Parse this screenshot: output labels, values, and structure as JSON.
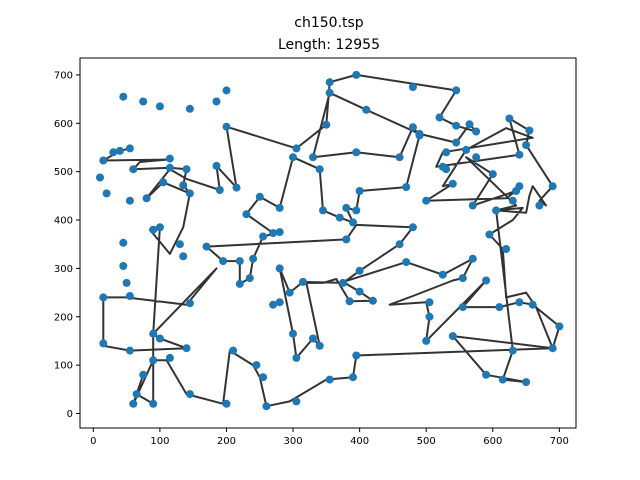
{
  "chart_data": {
    "type": "line",
    "title": "ch150.tsp",
    "subtitle": "Length: 12955",
    "xlabel": "",
    "ylabel": "",
    "xlim": [
      -20,
      725
    ],
    "ylim": [
      -30,
      735
    ],
    "x_ticks": [
      "0",
      "100",
      "200",
      "300",
      "400",
      "500",
      "600",
      "700"
    ],
    "y_ticks": [
      "0",
      "100",
      "200",
      "300",
      "400",
      "500",
      "600",
      "700"
    ],
    "grid": false,
    "colors": {
      "route": "#000000",
      "city": "#1f77b4"
    },
    "tour": [
      [
        30,
        540
      ],
      [
        55,
        548
      ],
      [
        40,
        543
      ],
      [
        15,
        523
      ],
      [
        110,
        525
      ],
      [
        70,
        520
      ],
      [
        60,
        505
      ],
      [
        115,
        508
      ],
      [
        140,
        505
      ],
      [
        135,
        472
      ],
      [
        145,
        455
      ],
      [
        105,
        478
      ],
      [
        80,
        445
      ],
      [
        115,
        505
      ],
      [
        140,
        485
      ],
      [
        190,
        462
      ],
      [
        185,
        512
      ],
      [
        215,
        467
      ],
      [
        200,
        593
      ],
      [
        305,
        548
      ],
      [
        350,
        597
      ],
      [
        355,
        685
      ],
      [
        395,
        700
      ],
      [
        545,
        668
      ],
      [
        520,
        612
      ],
      [
        545,
        595
      ],
      [
        575,
        583
      ],
      [
        565,
        598
      ],
      [
        545,
        560
      ],
      [
        490,
        578
      ],
      [
        410,
        628
      ],
      [
        355,
        663
      ],
      [
        330,
        530
      ],
      [
        395,
        540
      ],
      [
        460,
        530
      ],
      [
        480,
        592
      ],
      [
        490,
        575
      ],
      [
        470,
        468
      ],
      [
        400,
        460
      ],
      [
        395,
        420
      ],
      [
        380,
        425
      ],
      [
        380,
        425
      ],
      [
        390,
        395
      ],
      [
        370,
        405
      ],
      [
        345,
        420
      ],
      [
        340,
        505
      ],
      [
        300,
        530
      ],
      [
        280,
        425
      ],
      [
        250,
        448
      ],
      [
        230,
        412
      ],
      [
        270,
        373
      ],
      [
        280,
        375
      ],
      [
        255,
        366
      ],
      [
        240,
        320
      ],
      [
        235,
        280
      ],
      [
        220,
        268
      ],
      [
        220,
        315
      ],
      [
        195,
        315
      ],
      [
        170,
        345
      ],
      [
        380,
        360
      ],
      [
        395,
        390
      ],
      [
        480,
        385
      ],
      [
        460,
        350
      ],
      [
        400,
        295
      ],
      [
        375,
        270
      ],
      [
        315,
        272
      ],
      [
        295,
        250
      ],
      [
        280,
        300
      ],
      [
        300,
        165
      ],
      [
        305,
        115
      ],
      [
        330,
        155
      ],
      [
        340,
        140
      ],
      [
        320,
        270
      ],
      [
        345,
        270
      ],
      [
        365,
        278
      ],
      [
        385,
        232
      ],
      [
        420,
        233
      ],
      [
        400,
        252
      ],
      [
        375,
        272
      ],
      [
        470,
        313
      ],
      [
        525,
        287
      ],
      [
        570,
        320
      ],
      [
        555,
        280
      ],
      [
        540,
        275
      ],
      [
        480,
        243
      ],
      [
        445,
        225
      ],
      [
        500,
        230
      ],
      [
        505,
        200
      ],
      [
        500,
        150
      ],
      [
        590,
        275
      ],
      [
        555,
        220
      ],
      [
        610,
        220
      ],
      [
        640,
        230
      ],
      [
        660,
        225
      ],
      [
        700,
        180
      ],
      [
        690,
        135
      ],
      [
        665,
        220
      ],
      [
        650,
        250
      ],
      [
        620,
        240
      ],
      [
        615,
        340
      ],
      [
        595,
        370
      ],
      [
        630,
        400
      ],
      [
        645,
        425
      ],
      [
        605,
        420
      ],
      [
        650,
        415
      ],
      [
        655,
        450
      ],
      [
        660,
        470
      ],
      [
        680,
        430
      ],
      [
        670,
        440
      ],
      [
        690,
        470
      ],
      [
        650,
        555
      ],
      [
        655,
        585
      ],
      [
        625,
        610
      ],
      [
        640,
        535
      ],
      [
        515,
        510
      ],
      [
        525,
        540
      ],
      [
        660,
        570
      ],
      [
        620,
        590
      ],
      [
        560,
        545
      ],
      [
        525,
        470
      ],
      [
        540,
        475
      ],
      [
        500,
        440
      ],
      [
        620,
        445
      ],
      [
        635,
        460
      ],
      [
        570,
        430
      ],
      [
        600,
        495
      ],
      [
        560,
        530
      ],
      [
        635,
        430
      ],
      [
        605,
        420
      ],
      [
        630,
        130
      ],
      [
        615,
        70
      ],
      [
        650,
        65
      ],
      [
        590,
        80
      ],
      [
        540,
        160
      ],
      [
        690,
        135
      ],
      [
        395,
        120
      ],
      [
        390,
        75
      ],
      [
        350,
        70
      ],
      [
        295,
        25
      ],
      [
        260,
        15
      ],
      [
        250,
        75
      ],
      [
        240,
        100
      ],
      [
        205,
        130
      ],
      [
        195,
        20
      ],
      [
        140,
        40
      ],
      [
        110,
        110
      ],
      [
        90,
        110
      ],
      [
        60,
        20
      ],
      [
        75,
        80
      ],
      [
        65,
        40
      ],
      [
        90,
        20
      ],
      [
        90,
        165
      ],
      [
        100,
        155
      ],
      [
        140,
        135
      ],
      [
        55,
        130
      ],
      [
        15,
        140
      ],
      [
        15,
        240
      ],
      [
        50,
        240
      ],
      [
        140,
        225
      ],
      [
        185,
        300
      ],
      [
        90,
        165
      ],
      [
        100,
        385
      ],
      [
        85,
        380
      ],
      [
        115,
        330
      ],
      [
        135,
        385
      ],
      [
        145,
        455
      ]
    ],
    "cities": [
      [
        30,
        540
      ],
      [
        55,
        548
      ],
      [
        40,
        543
      ],
      [
        15,
        523
      ],
      [
        10,
        488
      ],
      [
        20,
        455
      ],
      [
        55,
        440
      ],
      [
        80,
        445
      ],
      [
        105,
        478
      ],
      [
        115,
        508
      ],
      [
        115,
        527
      ],
      [
        60,
        505
      ],
      [
        140,
        505
      ],
      [
        135,
        472
      ],
      [
        145,
        455
      ],
      [
        190,
        462
      ],
      [
        185,
        512
      ],
      [
        215,
        467
      ],
      [
        200,
        593
      ],
      [
        305,
        548
      ],
      [
        350,
        597
      ],
      [
        355,
        685
      ],
      [
        395,
        700
      ],
      [
        545,
        668
      ],
      [
        520,
        612
      ],
      [
        545,
        595
      ],
      [
        575,
        583
      ],
      [
        565,
        598
      ],
      [
        545,
        560
      ],
      [
        490,
        578
      ],
      [
        410,
        628
      ],
      [
        355,
        663
      ],
      [
        330,
        530
      ],
      [
        395,
        540
      ],
      [
        460,
        530
      ],
      [
        480,
        592
      ],
      [
        490,
        575
      ],
      [
        470,
        468
      ],
      [
        400,
        460
      ],
      [
        395,
        420
      ],
      [
        380,
        425
      ],
      [
        390,
        395
      ],
      [
        370,
        405
      ],
      [
        345,
        420
      ],
      [
        340,
        505
      ],
      [
        300,
        530
      ],
      [
        280,
        425
      ],
      [
        250,
        448
      ],
      [
        230,
        412
      ],
      [
        270,
        373
      ],
      [
        280,
        375
      ],
      [
        255,
        366
      ],
      [
        240,
        320
      ],
      [
        235,
        280
      ],
      [
        220,
        268
      ],
      [
        220,
        315
      ],
      [
        195,
        315
      ],
      [
        170,
        345
      ],
      [
        380,
        360
      ],
      [
        480,
        385
      ],
      [
        460,
        350
      ],
      [
        400,
        295
      ],
      [
        375,
        270
      ],
      [
        315,
        272
      ],
      [
        295,
        250
      ],
      [
        280,
        300
      ],
      [
        300,
        165
      ],
      [
        305,
        115
      ],
      [
        330,
        155
      ],
      [
        340,
        140
      ],
      [
        270,
        225
      ],
      [
        280,
        230
      ],
      [
        385,
        232
      ],
      [
        420,
        233
      ],
      [
        400,
        252
      ],
      [
        470,
        313
      ],
      [
        525,
        287
      ],
      [
        570,
        320
      ],
      [
        555,
        280
      ],
      [
        590,
        275
      ],
      [
        555,
        220
      ],
      [
        610,
        220
      ],
      [
        640,
        230
      ],
      [
        660,
        225
      ],
      [
        700,
        180
      ],
      [
        690,
        135
      ],
      [
        540,
        160
      ],
      [
        505,
        200
      ],
      [
        500,
        150
      ],
      [
        505,
        230
      ],
      [
        620,
        340
      ],
      [
        595,
        370
      ],
      [
        605,
        420
      ],
      [
        630,
        440
      ],
      [
        635,
        460
      ],
      [
        640,
        470
      ],
      [
        670,
        430
      ],
      [
        690,
        470
      ],
      [
        650,
        555
      ],
      [
        655,
        585
      ],
      [
        625,
        610
      ],
      [
        640,
        535
      ],
      [
        525,
        510
      ],
      [
        530,
        540
      ],
      [
        560,
        545
      ],
      [
        575,
        530
      ],
      [
        500,
        440
      ],
      [
        570,
        430
      ],
      [
        600,
        495
      ],
      [
        530,
        505
      ],
      [
        540,
        475
      ],
      [
        630,
        130
      ],
      [
        615,
        70
      ],
      [
        650,
        65
      ],
      [
        590,
        80
      ],
      [
        395,
        120
      ],
      [
        390,
        75
      ],
      [
        355,
        70
      ],
      [
        305,
        25
      ],
      [
        260,
        15
      ],
      [
        255,
        75
      ],
      [
        245,
        100
      ],
      [
        210,
        130
      ],
      [
        200,
        20
      ],
      [
        145,
        40
      ],
      [
        140,
        135
      ],
      [
        115,
        115
      ],
      [
        90,
        110
      ],
      [
        60,
        20
      ],
      [
        75,
        80
      ],
      [
        65,
        40
      ],
      [
        90,
        20
      ],
      [
        90,
        165
      ],
      [
        100,
        155
      ],
      [
        55,
        130
      ],
      [
        15,
        145
      ],
      [
        15,
        240
      ],
      [
        55,
        243
      ],
      [
        145,
        228
      ],
      [
        100,
        385
      ],
      [
        90,
        380
      ],
      [
        130,
        350
      ],
      [
        135,
        325
      ],
      [
        45,
        353
      ],
      [
        45,
        305
      ],
      [
        50,
        270
      ],
      [
        100,
        635
      ],
      [
        75,
        645
      ],
      [
        45,
        655
      ],
      [
        185,
        645
      ],
      [
        200,
        668
      ],
      [
        145,
        630
      ],
      [
        480,
        675
      ]
    ]
  }
}
